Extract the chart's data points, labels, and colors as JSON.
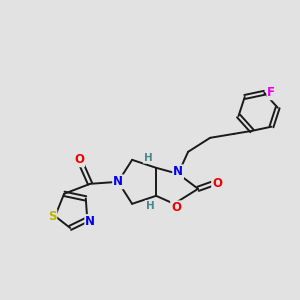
{
  "background_color": "#e2e2e2",
  "bond_color": "#1a1a1a",
  "atom_colors": {
    "N": "#0000ee",
    "O": "#ee0000",
    "S": "#b8b800",
    "F": "#ee00ee",
    "H": "#4a8888",
    "C": "#1a1a1a"
  },
  "font_size_atoms": 8.5,
  "fig_size": [
    3.0,
    3.0
  ],
  "dpi": 100
}
